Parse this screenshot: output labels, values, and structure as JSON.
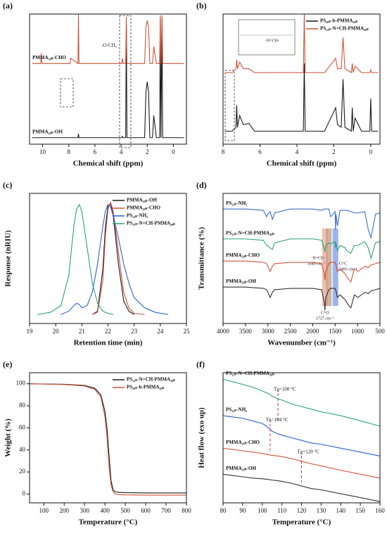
{
  "chart_data": [
    {
      "type": "line",
      "label": "(a)",
      "xlabel": "Chemical shift (ppm)",
      "xlim": [
        11,
        -1
      ],
      "xticks": [
        10,
        8,
        6,
        4,
        2,
        0
      ],
      "ylim": [
        0,
        100
      ],
      "legend": "inline",
      "x": [
        10.8,
        10.15,
        10.1,
        10.05,
        9,
        7.9,
        7.85,
        7.3,
        7.26,
        7.22,
        7.1,
        7.05,
        6,
        4.5,
        3.95,
        3.9,
        3.85,
        3.65,
        3.6,
        3.55,
        3.3,
        2.2,
        2.1,
        2.0,
        1.9,
        1.8,
        1.6,
        1.5,
        1.3,
        1.05,
        1.0,
        0.95,
        0.87,
        0.82,
        0.7,
        0.4,
        -0.8
      ],
      "series": [
        {
          "name": "PMMA₂₀ₖ-OH",
          "color": "#1a1a1a",
          "values": [
            5,
            5,
            5,
            5,
            5,
            5,
            5,
            5,
            8,
            5,
            5,
            5,
            5,
            5,
            5,
            6,
            5,
            5,
            92,
            5,
            5,
            5,
            40,
            48,
            40,
            5,
            5,
            22,
            5,
            5,
            96,
            5,
            96,
            5,
            5,
            5,
            5
          ]
        },
        {
          "name": "PMMA₂₀ₖ-CHO",
          "color": "#d0543a",
          "values": [
            62,
            62,
            70,
            62,
            62,
            62,
            66,
            62,
            100,
            62,
            62,
            62,
            62,
            62,
            62,
            66,
            62,
            62,
            98,
            62,
            62,
            62,
            90,
            95,
            90,
            62,
            62,
            75,
            62,
            62,
            99,
            62,
            99,
            62,
            62,
            62,
            62
          ]
        }
      ],
      "annotations": [
        {
          "text": "-O-CH₃"
        }
      ]
    },
    {
      "type": "line",
      "label": "(b)",
      "xlabel": "Chemical shift (ppm)",
      "xlim": [
        8,
        -0.5
      ],
      "xticks": [
        8,
        6,
        4,
        2,
        0
      ],
      "ylim": [
        0,
        100
      ],
      "legend": "upper right",
      "inset": true,
      "x": [
        7.9,
        7.5,
        7.3,
        7.26,
        7.22,
        7.1,
        6.9,
        6.6,
        6.3,
        5,
        3.65,
        3.6,
        3.55,
        2.5,
        1.9,
        1.8,
        1.6,
        1.5,
        1.4,
        1.05,
        1.0,
        0.95,
        0.85,
        0.5,
        0.05,
        0,
        -0.05,
        -0.4
      ],
      "series": [
        {
          "name": "PS₂₀ₖ-b-PMMA₂₀ₖ",
          "color": "#1a1a1a",
          "values": [
            10,
            10,
            13,
            30,
            13,
            22,
            15,
            16,
            10,
            10,
            10,
            62,
            10,
            10,
            28,
            15,
            13,
            50,
            13,
            10,
            28,
            10,
            20,
            10,
            10,
            35,
            10,
            10
          ]
        },
        {
          "name": "PS₁₂ₖ-N=CH-PMMA₂₀ₖ",
          "color": "#d0543a",
          "values": [
            55,
            55,
            58,
            65,
            58,
            63,
            58,
            58,
            55,
            55,
            55,
            100,
            55,
            55,
            66,
            58,
            58,
            82,
            58,
            55,
            62,
            55,
            60,
            55,
            55,
            57,
            55,
            55
          ]
        }
      ],
      "annotations": [
        {
          "text": "-N=CH-"
        }
      ]
    },
    {
      "type": "line",
      "label": "(c)",
      "xlabel": "Retention time (min)",
      "ylabel": "Response (nRIU)",
      "xlim": [
        19,
        25
      ],
      "xticks": [
        19,
        20,
        21,
        22,
        23,
        24,
        25
      ],
      "ylim": [
        -8,
        108
      ],
      "legend": "upper right",
      "x": [
        19.3,
        19.8,
        20.2,
        20.5,
        20.7,
        20.8,
        20.9,
        21.0,
        21.2,
        21.4,
        21.6,
        21.8,
        21.9,
        22.0,
        22.1,
        22.2,
        22.4,
        22.6,
        22.8,
        23.0,
        23.4,
        23.8,
        24.3
      ],
      "series": [
        {
          "name": "PMMA₂₀ₖ-OH",
          "color": "#1a1a1a",
          "values": [
            null,
            null,
            null,
            null,
            null,
            null,
            null,
            null,
            null,
            0,
            3,
            40,
            78,
            97,
            99,
            88,
            45,
            12,
            3,
            0,
            null,
            null,
            null
          ]
        },
        {
          "name": "PMMA₂₀ₖ-CHO",
          "color": "#d0543a",
          "values": [
            null,
            null,
            null,
            null,
            null,
            null,
            null,
            null,
            null,
            0,
            2,
            30,
            70,
            94,
            100,
            92,
            55,
            20,
            6,
            1,
            0,
            null,
            null
          ]
        },
        {
          "name": "PS₁₂ₖ-NH₂",
          "color": "#2b5fd9",
          "values": [
            null,
            null,
            0,
            3,
            8,
            10,
            9,
            6,
            8,
            20,
            45,
            78,
            92,
            98,
            96,
            88,
            68,
            45,
            28,
            15,
            6,
            2,
            0
          ]
        },
        {
          "name": "PS₁₂ₖ-N=CH-PMMA₂₀ₖ",
          "color": "#2aa37a",
          "values": [
            0,
            2,
            8,
            35,
            80,
            94,
            98,
            92,
            60,
            28,
            10,
            3,
            2,
            1,
            0.5,
            0,
            null,
            null,
            null,
            null,
            null,
            null,
            null
          ]
        }
      ]
    },
    {
      "type": "line",
      "label": "(d)",
      "xlabel": "Wavenumber (cm⁻¹)",
      "ylabel": "Transmittance (%)",
      "xlim": [
        4000,
        500
      ],
      "xticks": [
        4000,
        3500,
        3000,
        2500,
        2000,
        1500,
        1000,
        500
      ],
      "ylim": [
        0,
        100
      ],
      "legend": "inline",
      "x": [
        4000,
        3500,
        3100,
        3030,
        3000,
        2950,
        2900,
        2850,
        2500,
        2000,
        1800,
        1740,
        1727,
        1710,
        1640,
        1600,
        1500,
        1493,
        1480,
        1450,
        1390,
        1270,
        1240,
        1150,
        1070,
        990,
        840,
        760,
        700,
        600,
        500
      ],
      "series": [
        {
          "name": "PS₁₂ₖ-NH₂",
          "color": "#3b6fc9",
          "values": [
            88,
            88,
            87,
            82,
            84,
            86,
            80,
            85,
            88,
            88,
            87,
            88,
            88,
            88,
            88,
            82,
            86,
            72,
            84,
            75,
            87,
            87,
            87,
            86,
            85,
            85,
            86,
            72,
            66,
            84,
            85
          ]
        },
        {
          "name": "PS₁₂ₖ-N=CH-PMMA₂₀ₖ",
          "color": "#2aa37a",
          "values": [
            65,
            65,
            64,
            60,
            60,
            58,
            57,
            62,
            65,
            65,
            64,
            57,
            55,
            60,
            62,
            61,
            63,
            58,
            62,
            56,
            60,
            58,
            56,
            54,
            60,
            60,
            63,
            58,
            50,
            62,
            63
          ]
        },
        {
          "name": "PMMA₂₀ₖ-CHO",
          "color": "#d0543a",
          "values": [
            48,
            48,
            47,
            46,
            44,
            40,
            44,
            46,
            47,
            47,
            46,
            38,
            33,
            40,
            46,
            47,
            47,
            46,
            45,
            40,
            42,
            38,
            36,
            32,
            42,
            40,
            44,
            43,
            45,
            46,
            47
          ]
        },
        {
          "name": "PMMA₂₀ₖ-OH",
          "color": "#333333",
          "values": [
            28,
            28,
            27,
            26,
            24,
            20,
            24,
            26,
            27,
            27,
            26,
            16,
            10,
            20,
            26,
            27,
            27,
            26,
            25,
            20,
            22,
            18,
            16,
            12,
            22,
            20,
            24,
            23,
            25,
            26,
            27
          ]
        }
      ],
      "annotations": [
        {
          "text": "-N=CH-",
          "subtext": "1640 cm⁻¹",
          "x": 1640,
          "color": "#a07a55"
        },
        {
          "text": "C=C",
          "subtext": "1493 cm⁻¹",
          "x": 1493,
          "color": "#4a78e0"
        },
        {
          "text": "C=O",
          "subtext": "1727 cm⁻¹",
          "x": 1727,
          "color": "#e08a70"
        }
      ]
    },
    {
      "type": "line",
      "label": "(e)",
      "xlabel": "Temperature (°C)",
      "ylabel": "Weight (%)",
      "xlim": [
        30,
        800
      ],
      "xticks": [
        100,
        200,
        300,
        400,
        500,
        600,
        700,
        800
      ],
      "ylim": [
        -8,
        110
      ],
      "yticks": [
        0,
        20,
        40,
        60,
        80,
        100
      ],
      "legend": "upper right",
      "x": [
        30,
        100,
        200,
        300,
        350,
        380,
        400,
        410,
        420,
        430,
        440,
        450,
        470,
        500,
        600,
        800
      ],
      "series": [
        {
          "name": "PS₁₂ₖ-N=CH-PMMA₂₀ₖ",
          "color": "#1a1a1a",
          "values": [
            100,
            99.8,
            99.5,
            98.5,
            96,
            90,
            75,
            60,
            35,
            12,
            4,
            2,
            1.5,
            1.2,
            1,
            1
          ]
        },
        {
          "name": "PS₂₀ₖ-b-PMMA₂₀ₖ",
          "color": "#d0543a",
          "values": [
            100,
            99.7,
            99.3,
            98,
            95,
            88,
            70,
            52,
            25,
            8,
            2,
            0,
            -0.5,
            -0.8,
            -1,
            -1
          ]
        }
      ]
    },
    {
      "type": "line",
      "label": "(f)",
      "xlabel": "Temperature (°C)",
      "ylabel": "Heat flow (exo up)",
      "xlim": [
        80,
        160
      ],
      "xticks": [
        80,
        90,
        100,
        110,
        120,
        130,
        140,
        150,
        160
      ],
      "ylim": [
        0,
        100
      ],
      "legend": "inline",
      "x": [
        80,
        85,
        90,
        95,
        100,
        103,
        105,
        108,
        110,
        115,
        120,
        125,
        130,
        140,
        150,
        160
      ],
      "series": [
        {
          "name": "PS₁₂ₖ-N=CH-PMMA₂₀ₖ",
          "color": "#2aa37a",
          "values": [
            95,
            93,
            91,
            89,
            86,
            84,
            82,
            80,
            79,
            76,
            74,
            72,
            70,
            67,
            63,
            59
          ]
        },
        {
          "name": "PS₁₂ₖ-NH₂",
          "color": "#2b5fd9",
          "values": [
            67,
            66,
            65,
            63,
            61,
            58,
            55,
            53,
            52,
            50,
            48,
            46,
            45,
            42,
            39,
            36
          ]
        },
        {
          "name": "PMMA₂₀ₖ-CHO",
          "color": "#d0543a",
          "values": [
            42,
            41,
            40,
            39,
            38,
            37,
            36.5,
            36,
            35.5,
            34,
            32,
            30,
            28.5,
            25,
            22,
            19
          ]
        },
        {
          "name": "PMMA₂₀ₖ-OH",
          "color": "#333333",
          "values": [
            22,
            21,
            20,
            19,
            18.5,
            18,
            17.5,
            17,
            16.5,
            15,
            13,
            11,
            10,
            7,
            4,
            1
          ]
        }
      ],
      "markers": [
        {
          "x": 108,
          "label": "Tg=108 °C"
        },
        {
          "x": 104,
          "label": "Tg=104 °C"
        },
        {
          "x": 120,
          "label": "Tg=120 °C"
        }
      ]
    }
  ]
}
